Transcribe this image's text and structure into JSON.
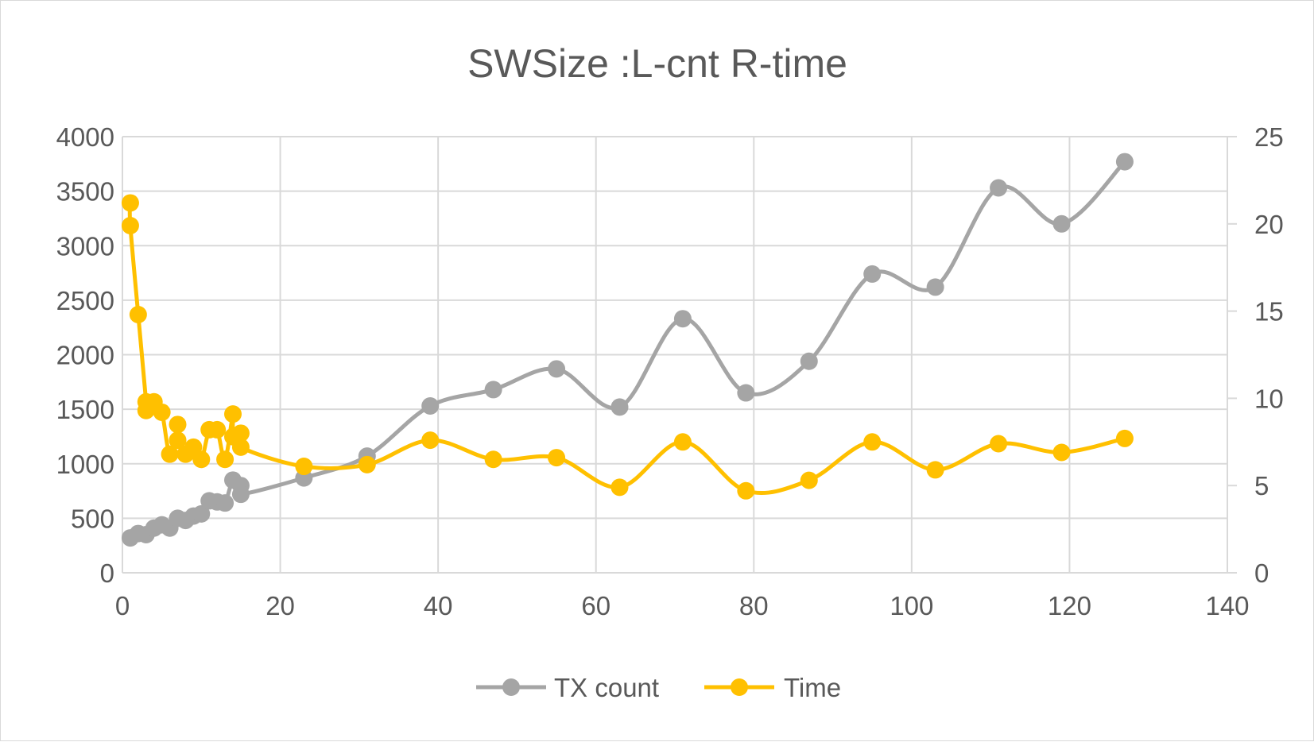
{
  "chart_data": {
    "type": "line",
    "title": "SWSize :L-cnt R-time",
    "xlabel": "",
    "ylabel_left": "",
    "ylabel_right": "",
    "xlim": [
      0,
      140
    ],
    "x_ticks": [
      0,
      20,
      40,
      60,
      80,
      100,
      120,
      140
    ],
    "ylim_left": [
      0,
      4000
    ],
    "y_left_ticks": [
      0,
      500,
      1000,
      1500,
      2000,
      2500,
      3000,
      3500,
      4000
    ],
    "ylim_right": [
      0,
      25
    ],
    "y_right_ticks": [
      0,
      5,
      10,
      15,
      20,
      25
    ],
    "grid": true,
    "smooth": true,
    "legend_position": "bottom",
    "series": [
      {
        "name": "TX count",
        "axis": "left",
        "color": "#a5a5a5",
        "x": [
          1,
          2,
          3,
          4,
          5,
          6,
          7,
          8,
          9,
          10,
          11,
          12,
          13,
          14,
          15,
          15,
          23,
          31,
          39,
          47,
          55,
          63,
          71,
          79,
          87,
          95,
          103,
          111,
          119,
          127
        ],
        "y": [
          320,
          360,
          350,
          410,
          440,
          410,
          500,
          480,
          520,
          540,
          660,
          650,
          640,
          850,
          800,
          720,
          870,
          1070,
          1530,
          1680,
          1870,
          1520,
          2330,
          1650,
          1940,
          2740,
          2620,
          3530,
          3200,
          3770
        ]
      },
      {
        "name": "Time",
        "axis": "right",
        "color": "#ffc000",
        "x": [
          1,
          1,
          2,
          3,
          3,
          4,
          5,
          6,
          7,
          7,
          8,
          9,
          10,
          11,
          12,
          13,
          14,
          14,
          15,
          15,
          23,
          31,
          39,
          47,
          55,
          63,
          71,
          79,
          87,
          95,
          103,
          111,
          119,
          127
        ],
        "y": [
          21.2,
          19.9,
          14.8,
          9.8,
          9.3,
          9.8,
          9.2,
          6.8,
          8.5,
          7.6,
          6.8,
          7.2,
          6.5,
          8.2,
          8.2,
          6.5,
          9.1,
          7.8,
          8.0,
          7.2,
          6.1,
          6.2,
          7.6,
          6.5,
          6.6,
          4.9,
          7.5,
          4.7,
          5.3,
          7.5,
          5.9,
          7.4,
          6.9,
          7.7
        ]
      }
    ]
  }
}
